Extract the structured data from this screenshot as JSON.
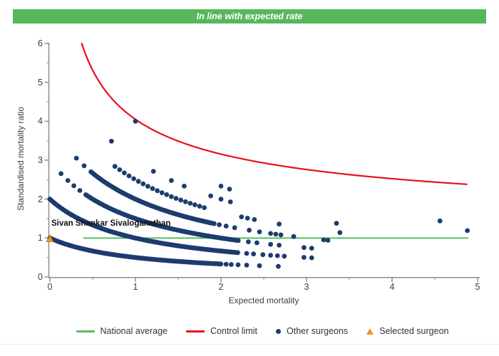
{
  "header": {
    "title": "In line with expected rate"
  },
  "colors": {
    "banner_green": "#58b75c",
    "national_average_green": "#5abd5f",
    "control_limit_red": "#e8101a",
    "surgeon_navy": "#1c3c6e",
    "selected_orange_fill": "#f6921e",
    "selected_orange_edge": "#c06d10",
    "axis_gray": "#8e8e8e",
    "text_dark": "#3c3c3c"
  },
  "chart_data": {
    "type": "scatter",
    "title": "In line with expected rate",
    "xlabel": "Expected mortality",
    "ylabel": "Standardised mortality ratio",
    "xlim": [
      0,
      5
    ],
    "ylim": [
      0,
      6
    ],
    "xticks": [
      0,
      1,
      2,
      3,
      4,
      5
    ],
    "yticks": [
      0,
      1,
      2,
      3,
      4,
      5,
      6
    ],
    "xticks_minor": [
      0.5,
      1.5,
      2.5,
      3.5,
      4.5
    ],
    "yticks_minor": [
      0.5,
      1.5,
      2.5,
      3.5,
      4.5,
      5.5
    ],
    "grid": false,
    "legend_position": "bottom",
    "national_average": {
      "y": 1.0,
      "x_from": 0.39,
      "x_to": 4.89
    },
    "control_limit": {
      "formula": "y = 1 + 3.05/sqrt(x)",
      "c": 1,
      "k": 3.05,
      "x_from": 0.372,
      "x_to": 4.89,
      "sample_step": 0.02
    },
    "other_surgeons": {
      "smr_model": "y = deaths / (expected + 1)",
      "denominator_offset": 1,
      "point_radius_px": 3.4,
      "bands": [
        {
          "deaths": 1,
          "dense": [
            {
              "from": 0.0,
              "to": 2.0,
              "step": 0.018
            }
          ],
          "dots": [
            2.06,
            2.12,
            2.2,
            2.3,
            2.45,
            2.67
          ]
        },
        {
          "deaths": 2,
          "dense": [
            {
              "from": 0.0,
              "to": 2.2,
              "step": 0.018
            }
          ],
          "dots": [
            2.3,
            2.38,
            2.49,
            2.58,
            2.66,
            2.74,
            2.97,
            3.06
          ]
        },
        {
          "deaths": 3,
          "dense": [
            {
              "from": 0.42,
              "to": 2.2,
              "step": 0.018
            }
          ],
          "dots": [
            0.13,
            0.21,
            0.28,
            0.35,
            2.32,
            2.42,
            2.58,
            2.68,
            2.97,
            3.06
          ]
        },
        {
          "deaths": 4,
          "dense": [
            {
              "from": 0.48,
              "to": 1.92,
              "step": 0.018
            }
          ],
          "dots": [
            0.31,
            0.4,
            1.98,
            2.06,
            2.16,
            2.33,
            2.45,
            2.58,
            2.64,
            2.7,
            2.85,
            3.2,
            3.25
          ]
        },
        {
          "deaths": 5,
          "dense": [
            {
              "from": 0.76,
              "to": 1.8,
              "step": 0.055
            }
          ],
          "dots": [
            2.24,
            2.31,
            2.39,
            2.68,
            3.39
          ]
        },
        {
          "deaths": 6,
          "dense": [],
          "dots": [
            0.72,
            1.21,
            1.42,
            1.57,
            1.88,
            2.0,
            2.11,
            3.35
          ]
        },
        {
          "deaths": 7,
          "dense": [],
          "dots": [
            2.0,
            2.1,
            4.88
          ]
        },
        {
          "deaths": 8,
          "dense": [],
          "dots": [
            1.0,
            4.56
          ]
        }
      ]
    },
    "selected_surgeon": {
      "label": "Sivan Shankar Sivaloganathan",
      "x": 0.0,
      "y": 0.98
    }
  },
  "legend": [
    {
      "label": "National average",
      "marker": "line",
      "color_key": "national_average_green"
    },
    {
      "label": "Control limit",
      "marker": "line",
      "color_key": "control_limit_red"
    },
    {
      "label": "Other surgeons",
      "marker": "dot",
      "color_key": "surgeon_navy"
    },
    {
      "label": "Selected surgeon",
      "marker": "triangle",
      "color_key": "selected_orange_fill"
    }
  ]
}
